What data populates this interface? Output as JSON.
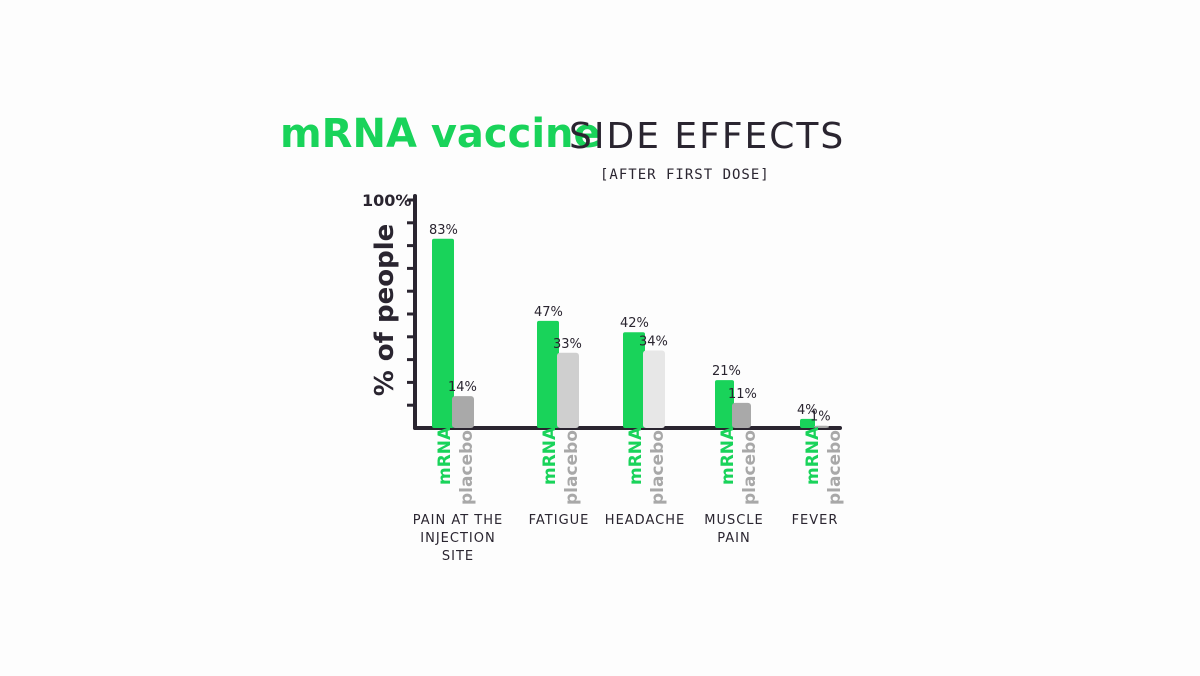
{
  "chart_data": {
    "type": "bar",
    "title_part1": "mRNA vaccine",
    "title_part2": "SIDE EFFECTS",
    "subtitle": "[AFTER FIRST DOSE]",
    "ylabel": "% of people",
    "y_max_label": "100%",
    "ylim": [
      0,
      100
    ],
    "categories": [
      [
        "PAIN AT THE",
        "INJECTION",
        "SITE"
      ],
      [
        "FATIGUE"
      ],
      [
        "HEADACHE"
      ],
      [
        "MUSCLE",
        "PAIN"
      ],
      [
        "FEVER"
      ]
    ],
    "series": [
      {
        "name": "mRNA",
        "color": "#19d35a",
        "values": [
          83,
          47,
          42,
          21,
          4
        ],
        "labels": [
          "83%",
          "47%",
          "42%",
          "21%",
          "4%"
        ]
      },
      {
        "name": "placebo",
        "colors": [
          "#a9a9a9",
          "#cfcfcf",
          "#e7e7e7",
          "#a9a9a9",
          "#a9a9a9"
        ],
        "values": [
          14,
          33,
          34,
          11,
          1
        ],
        "labels": [
          "14%",
          "33%",
          "34%",
          "11%",
          "1%"
        ]
      }
    ]
  }
}
